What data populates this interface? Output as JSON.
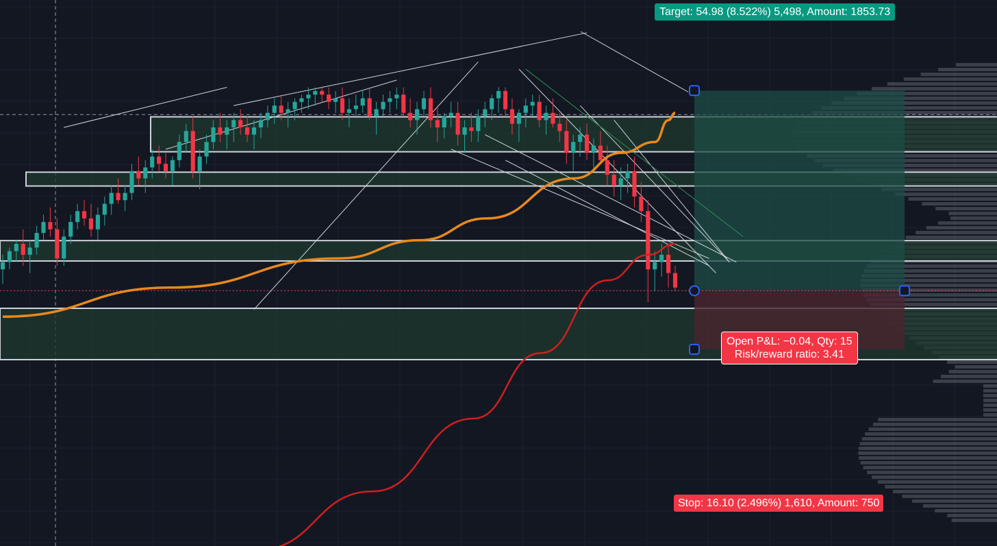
{
  "colors": {
    "background": "#131722",
    "grid": "#1e222d",
    "up": "#26a69a",
    "down": "#f23645",
    "ma_fast": "#e8891c",
    "ma_slow": "#d11f1f",
    "target_zone": "#1d4c46",
    "stop_zone": "#4a2530",
    "zone_border": "#d1d4dc",
    "handle": "#2962ff"
  },
  "labels": {
    "target": "Target: 54.98 (8.522%) 5,498, Amount: 1853.73",
    "stop": "Stop: 16.10 (2.496%) 1,610, Amount: 750",
    "open_pnl": "Open P&L: −0.04, Qty: 15",
    "risk_reward": "Risk/reward ratio: 3.41"
  },
  "chart_data": {
    "type": "candlestick",
    "title": "",
    "xlabel": "",
    "ylabel": "",
    "ylim": [
      575,
      725
    ],
    "grid": true,
    "position_tool": {
      "entry": 645.13,
      "target": 700.11,
      "stop": 629.03,
      "target_pct": 8.522,
      "stop_pct": 2.496,
      "qty": 15,
      "open_pnl": -0.04,
      "risk_reward": 3.41
    },
    "zones": [
      [
        683.3,
        692.9
      ],
      [
        673.9,
        677.7
      ],
      [
        653.3,
        658.9
      ],
      [
        626.2,
        640.3
      ]
    ],
    "candles": [
      [
        651,
        655,
        647,
        653
      ],
      [
        653,
        657,
        651,
        656
      ],
      [
        656,
        659,
        653,
        658
      ],
      [
        658,
        662,
        652,
        655
      ],
      [
        655,
        659,
        650,
        657
      ],
      [
        657,
        663,
        655,
        661
      ],
      [
        661,
        666,
        659,
        664
      ],
      [
        664,
        668,
        660,
        662
      ],
      [
        662,
        665,
        652,
        654
      ],
      [
        654,
        662,
        652,
        660
      ],
      [
        660,
        666,
        658,
        664
      ],
      [
        664,
        669,
        662,
        667
      ],
      [
        667,
        670,
        663,
        665
      ],
      [
        665,
        669,
        660,
        662
      ],
      [
        662,
        668,
        659,
        666
      ],
      [
        666,
        671,
        663,
        669
      ],
      [
        669,
        674,
        666,
        672
      ],
      [
        672,
        676,
        669,
        670
      ],
      [
        670,
        674,
        667,
        672
      ],
      [
        672,
        680,
        670,
        678
      ],
      [
        678,
        682,
        674,
        676
      ],
      [
        676,
        681,
        672,
        679
      ],
      [
        679,
        684,
        676,
        682
      ],
      [
        682,
        685,
        678,
        680
      ],
      [
        680,
        683,
        676,
        678
      ],
      [
        678,
        682,
        674,
        681
      ],
      [
        681,
        688,
        679,
        686
      ],
      [
        686,
        691,
        683,
        689
      ],
      [
        689,
        693,
        676,
        678
      ],
      [
        678,
        684,
        673,
        682
      ],
      [
        682,
        688,
        680,
        686
      ],
      [
        686,
        692,
        684,
        690
      ],
      [
        690,
        694,
        686,
        688
      ],
      [
        688,
        692,
        684,
        690
      ],
      [
        690,
        694,
        686,
        692
      ],
      [
        692,
        695,
        688,
        690
      ],
      [
        690,
        693,
        686,
        688
      ],
      [
        688,
        692,
        684,
        690
      ],
      [
        690,
        694,
        687,
        692
      ],
      [
        692,
        696,
        690,
        694
      ],
      [
        694,
        698,
        691,
        696
      ],
      [
        696,
        699,
        692,
        694
      ],
      [
        694,
        697,
        690,
        695
      ],
      [
        695,
        698,
        692,
        697
      ],
      [
        697,
        699,
        694,
        698
      ],
      [
        698,
        701,
        695,
        699
      ],
      [
        699,
        701,
        696,
        700
      ],
      [
        700,
        701,
        697,
        699
      ],
      [
        699,
        701,
        695,
        697
      ],
      [
        697,
        700,
        694,
        698
      ],
      [
        698,
        701,
        692,
        694
      ],
      [
        694,
        698,
        690,
        695
      ],
      [
        695,
        699,
        693,
        696
      ],
      [
        696,
        700,
        694,
        698
      ],
      [
        698,
        701,
        692,
        693
      ],
      [
        693,
        697,
        688,
        695
      ],
      [
        695,
        699,
        693,
        697
      ],
      [
        697,
        700,
        694,
        698
      ],
      [
        698,
        701,
        695,
        699
      ],
      [
        699,
        701,
        693,
        694
      ],
      [
        694,
        698,
        690,
        692
      ],
      [
        692,
        697,
        688,
        695
      ],
      [
        695,
        700,
        693,
        698
      ],
      [
        698,
        701,
        690,
        692
      ],
      [
        692,
        696,
        686,
        690
      ],
      [
        690,
        694,
        687,
        693
      ],
      [
        693,
        697,
        690,
        694
      ],
      [
        694,
        697,
        685,
        688
      ],
      [
        688,
        692,
        683,
        690
      ],
      [
        690,
        694,
        686,
        689
      ],
      [
        689,
        695,
        686,
        693
      ],
      [
        693,
        697,
        690,
        695
      ],
      [
        695,
        699,
        692,
        698
      ],
      [
        698,
        701,
        694,
        700
      ],
      [
        700,
        701,
        693,
        695
      ],
      [
        695,
        698,
        688,
        691
      ],
      [
        691,
        695,
        686,
        694
      ],
      [
        694,
        698,
        690,
        696
      ],
      [
        696,
        699,
        693,
        697
      ],
      [
        697,
        699,
        690,
        692
      ],
      [
        692,
        696,
        688,
        694
      ],
      [
        694,
        698,
        690,
        691
      ],
      [
        691,
        694,
        686,
        689
      ],
      [
        689,
        692,
        680,
        683
      ],
      [
        683,
        688,
        678,
        686
      ],
      [
        686,
        690,
        682,
        688
      ],
      [
        688,
        691,
        681,
        683
      ],
      [
        683,
        687,
        678,
        685
      ],
      [
        685,
        689,
        680,
        681
      ],
      [
        681,
        685,
        674,
        677
      ],
      [
        677,
        681,
        671,
        674
      ],
      [
        674,
        679,
        670,
        676
      ],
      [
        676,
        680,
        672,
        678
      ],
      [
        678,
        682,
        668,
        671
      ],
      [
        671,
        675,
        664,
        667
      ],
      [
        667,
        670,
        642,
        651
      ],
      [
        651,
        656,
        645,
        653
      ],
      [
        653,
        658,
        649,
        655
      ],
      [
        655,
        658,
        646,
        650
      ],
      [
        650,
        652,
        645,
        646
      ]
    ],
    "ma_fast_path": [
      [
        0,
        638
      ],
      [
        25,
        646
      ],
      [
        50,
        654
      ],
      [
        62,
        659
      ],
      [
        72,
        665
      ],
      [
        85,
        676
      ],
      [
        92,
        683
      ],
      [
        97,
        686
      ],
      [
        99,
        692
      ],
      [
        100,
        694
      ]
    ],
    "ma_slow_path": [
      [
        38,
        574
      ],
      [
        55,
        590
      ],
      [
        70,
        610
      ],
      [
        80,
        628
      ],
      [
        90,
        648
      ],
      [
        96,
        655
      ],
      [
        100,
        658
      ]
    ]
  }
}
